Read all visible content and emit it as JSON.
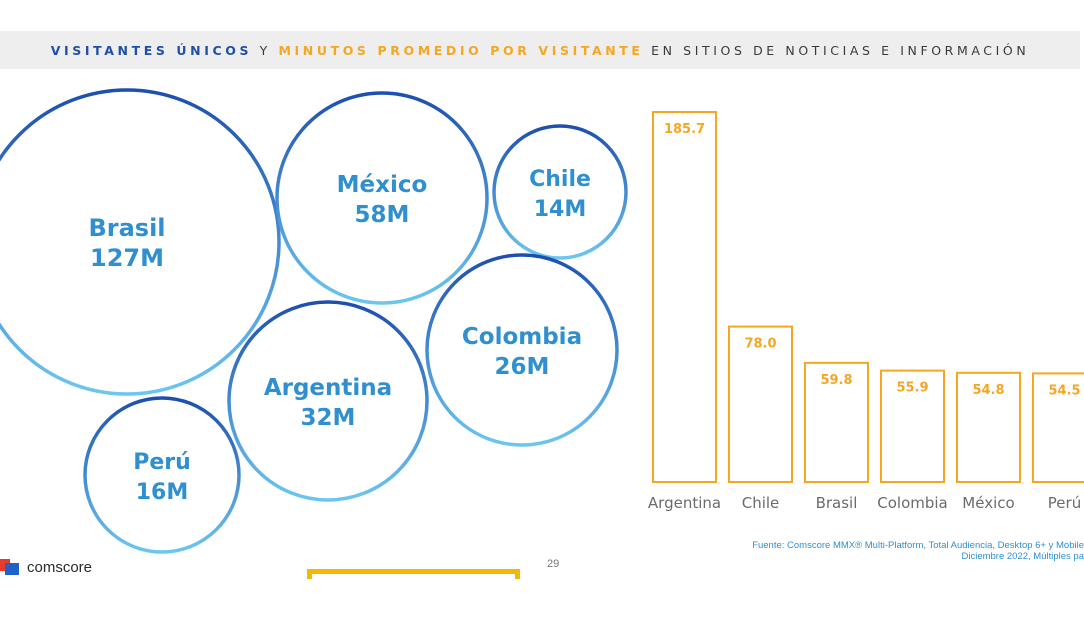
{
  "title": {
    "part1": "VISITANTES ÚNICOS",
    "part2": "Y",
    "part3": "MINUTOS PROMEDIO POR VISITANTE",
    "part4": "EN SITIOS DE NOTICIAS E INFORMACIÓN"
  },
  "colors": {
    "blue_accent": "#1f4fa6",
    "orange_accent": "#f5a623",
    "bubble_text": "#2f8fcf"
  },
  "chart_data": [
    {
      "type": "bubble",
      "series": [
        {
          "country": "Brasil",
          "label": "127M",
          "value": 127
        },
        {
          "country": "México",
          "label": "58M",
          "value": 58
        },
        {
          "country": "Chile",
          "label": "14M",
          "value": 14
        },
        {
          "country": "Colombia",
          "label": "26M",
          "value": 26
        },
        {
          "country": "Argentina",
          "label": "32M",
          "value": 32
        },
        {
          "country": "Perú",
          "label": "16M",
          "value": 16
        }
      ]
    },
    {
      "type": "bar",
      "categories": [
        "Argentina",
        "Chile",
        "Brasil",
        "Colombia",
        "México",
        "Perú"
      ],
      "values": [
        185.7,
        78.0,
        59.8,
        55.9,
        54.8,
        54.5
      ],
      "labels": [
        "185.7",
        "78.0",
        "59.8",
        "55.9",
        "54.8",
        "54.5"
      ],
      "ylim": [
        0,
        185.7
      ],
      "grid": false
    }
  ],
  "footer": {
    "source_line1": "Fuente: Comscore MMX® Multi-Platform, Total Audiencia, Desktop 6+ y Mobile",
    "source_line2": "Diciembre 2022, Múltiples pa",
    "logo_text": "comscore",
    "page_number": "29"
  }
}
